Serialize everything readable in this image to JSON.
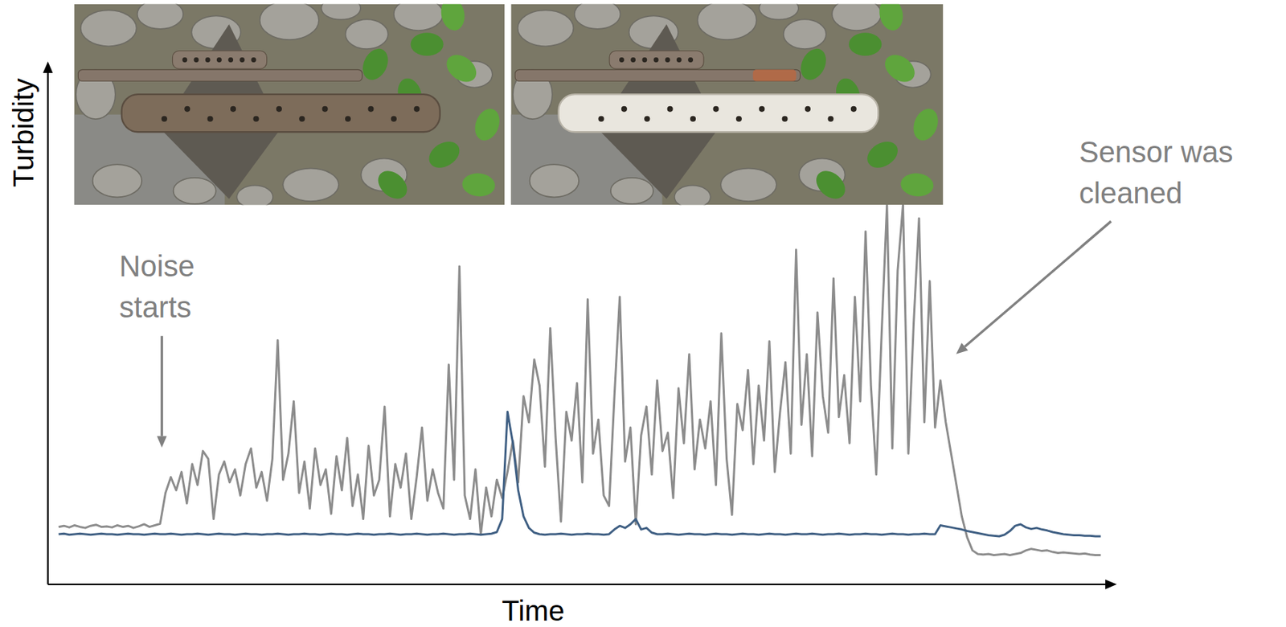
{
  "chart_data": {
    "type": "line",
    "x_label": "Time",
    "y_label": "Turbidity",
    "annotations": [
      {
        "text": "Noise starts"
      },
      {
        "text": "Sensor was cleaned"
      }
    ],
    "xlim": [
      0,
      200
    ],
    "ylim": [
      0,
      100
    ],
    "xticks": [],
    "yticks": [],
    "tick_labels": false,
    "grid": false,
    "x": [
      2,
      3,
      4,
      5,
      6,
      7,
      8,
      9,
      10,
      11,
      12,
      13,
      14,
      15,
      16,
      17,
      18,
      19,
      20,
      21,
      22,
      23,
      24,
      25,
      26,
      27,
      28,
      29,
      30,
      31,
      32,
      33,
      34,
      35,
      36,
      37,
      38,
      39,
      40,
      41,
      42,
      43,
      44,
      45,
      46,
      47,
      48,
      49,
      50,
      51,
      52,
      53,
      54,
      55,
      56,
      57,
      58,
      59,
      60,
      61,
      62,
      63,
      64,
      65,
      66,
      67,
      68,
      69,
      70,
      71,
      72,
      73,
      74,
      75,
      76,
      77,
      78,
      79,
      80,
      81,
      82,
      83,
      84,
      85,
      86,
      87,
      88,
      89,
      90,
      91,
      92,
      93,
      94,
      95,
      96,
      97,
      98,
      99,
      100,
      101,
      102,
      103,
      104,
      105,
      106,
      107,
      108,
      109,
      110,
      111,
      112,
      113,
      114,
      115,
      116,
      117,
      118,
      119,
      120,
      121,
      122,
      123,
      124,
      125,
      126,
      127,
      128,
      129,
      130,
      131,
      132,
      133,
      134,
      135,
      136,
      137,
      138,
      139,
      140,
      141,
      142,
      143,
      144,
      145,
      146,
      147,
      148,
      149,
      150,
      151,
      152,
      153,
      154,
      155,
      156,
      157,
      158,
      159,
      160,
      161,
      162,
      163,
      164,
      165,
      166,
      167,
      168,
      169,
      170,
      171,
      172,
      173,
      174,
      175,
      176,
      177,
      178,
      179,
      180,
      181,
      182,
      183,
      184,
      185,
      186,
      187,
      188,
      189,
      190,
      191,
      192,
      193,
      194,
      195,
      196,
      197
    ],
    "series": [
      {
        "color": "#8c8c8c",
        "line_style": "solid",
        "values": [
          11.0,
          11.2,
          10.9,
          11.3,
          11.0,
          10.8,
          11.2,
          11.4,
          11.0,
          11.1,
          10.9,
          11.3,
          11.0,
          11.2,
          10.8,
          11.1,
          11.5,
          11.0,
          11.3,
          11.6,
          17.5,
          20.5,
          18.0,
          21.5,
          15.5,
          23.0,
          19.0,
          25.5,
          24.0,
          12.5,
          21.0,
          23.5,
          19.5,
          22.0,
          17.0,
          23.0,
          26.0,
          18.5,
          21.5,
          16.0,
          24.0,
          46.7,
          20.0,
          25.0,
          35.0,
          17.5,
          23.5,
          14.5,
          26.0,
          19.0,
          22.0,
          13.5,
          24.5,
          18.0,
          28.0,
          15.0,
          21.0,
          12.5,
          26.5,
          17.0,
          20.0,
          34.0,
          13.0,
          23.0,
          18.5,
          25.0,
          12.5,
          20.5,
          30.0,
          16.0,
          22.0,
          17.5,
          14.5,
          42.0,
          20.0,
          60.8,
          17.0,
          12.5,
          22.0,
          9.5,
          18.5,
          13.0,
          20.0,
          16.5,
          21.5,
          27.5,
          19.5,
          36.0,
          31.0,
          43.0,
          38.0,
          22.5,
          49.0,
          28.0,
          12.0,
          33.0,
          27.5,
          38.5,
          19.5,
          54.5,
          25.0,
          31.5,
          17.0,
          15.0,
          36.0,
          55.0,
          23.5,
          30.0,
          11.5,
          28.5,
          34.0,
          21.0,
          39.0,
          25.5,
          29.0,
          16.5,
          37.5,
          27.0,
          44.0,
          22.0,
          31.5,
          26.0,
          35.0,
          19.0,
          48.0,
          24.0,
          13.3,
          34.5,
          29.5,
          41.0,
          23.0,
          38.0,
          27.5,
          46.5,
          21.5,
          33.0,
          42.5,
          25.0,
          64.0,
          30.5,
          44.0,
          24.5,
          52.0,
          36.0,
          29.0,
          58.5,
          32.0,
          40.0,
          27.0,
          55.0,
          35.0,
          67.5,
          38.0,
          21.0,
          48.0,
          72.6,
          26.0,
          60.0,
          72.6,
          25.0,
          50.0,
          70.0,
          31.0,
          58.0,
          30.0,
          39.0,
          31.0,
          25.0,
          19.0,
          13.0,
          9.0,
          6.5,
          5.8,
          5.7,
          5.8,
          5.6,
          5.7,
          5.8,
          5.6,
          5.8,
          6.0,
          6.5,
          6.8,
          6.6,
          6.4,
          6.5,
          6.2,
          6.0,
          6.1,
          6.0,
          5.9,
          5.8,
          5.9,
          5.7,
          5.6,
          5.6
        ]
      },
      {
        "color": "#3f5f83",
        "line_style": "solid",
        "values": [
          9.6,
          9.7,
          9.5,
          9.6,
          9.7,
          9.6,
          9.5,
          9.6,
          9.7,
          9.6,
          9.6,
          9.5,
          9.6,
          9.7,
          9.6,
          9.6,
          9.5,
          9.6,
          9.7,
          9.6,
          9.6,
          9.7,
          9.6,
          9.5,
          9.6,
          9.6,
          9.7,
          9.6,
          9.5,
          9.6,
          9.7,
          9.6,
          9.6,
          9.5,
          9.6,
          9.7,
          9.6,
          9.6,
          9.5,
          9.6,
          9.6,
          9.7,
          9.6,
          9.5,
          9.6,
          9.6,
          9.7,
          9.6,
          9.6,
          9.5,
          9.6,
          9.7,
          9.6,
          9.6,
          9.5,
          9.6,
          9.7,
          9.6,
          9.6,
          9.5,
          9.6,
          9.6,
          9.7,
          9.6,
          9.5,
          9.6,
          9.6,
          9.7,
          9.6,
          9.5,
          9.6,
          9.6,
          9.7,
          9.6,
          9.5,
          9.6,
          9.6,
          9.7,
          9.6,
          9.5,
          9.6,
          9.7,
          10.0,
          12.5,
          33.0,
          27.0,
          18.0,
          13.0,
          10.8,
          9.9,
          9.6,
          9.5,
          9.6,
          9.6,
          9.7,
          9.6,
          9.5,
          9.6,
          9.6,
          9.7,
          9.6,
          9.6,
          9.5,
          9.6,
          10.5,
          11.2,
          10.8,
          11.5,
          12.5,
          10.5,
          10.8,
          9.9,
          9.6,
          9.6,
          9.7,
          9.6,
          9.5,
          9.6,
          9.7,
          9.6,
          9.6,
          9.5,
          9.6,
          9.7,
          9.6,
          9.6,
          9.5,
          9.6,
          9.7,
          9.6,
          9.6,
          9.5,
          9.6,
          9.7,
          9.6,
          9.6,
          9.5,
          9.6,
          9.7,
          9.6,
          9.6,
          9.7,
          9.6,
          9.5,
          9.6,
          9.6,
          9.7,
          9.6,
          9.5,
          9.6,
          9.6,
          9.7,
          9.6,
          9.6,
          9.5,
          9.6,
          9.7,
          9.6,
          9.6,
          9.5,
          9.6,
          9.6,
          9.7,
          9.6,
          9.6,
          11.3,
          11.1,
          10.9,
          10.7,
          10.5,
          10.2,
          10.0,
          9.8,
          9.6,
          9.4,
          9.3,
          9.2,
          9.5,
          10.2,
          11.2,
          11.5,
          10.9,
          10.6,
          10.8,
          10.5,
          10.3,
          10.0,
          9.8,
          9.6,
          9.5,
          9.4,
          9.4,
          9.3,
          9.3,
          9.2,
          9.2
        ]
      }
    ]
  }
}
